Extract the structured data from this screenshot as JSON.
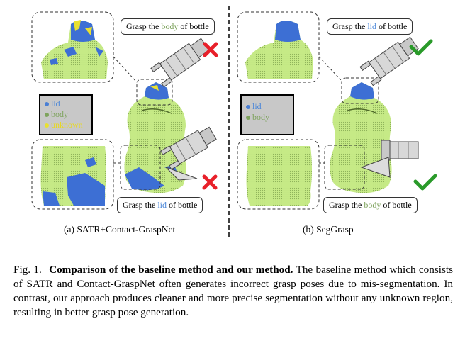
{
  "panel_a": {
    "subcaption": "(a) SATR+Contact-GraspNet",
    "bubble_top": {
      "prefix": "Grasp the ",
      "part": "body",
      "suffix": " of bottle"
    },
    "bubble_bottom": {
      "prefix": "Grasp the ",
      "part": "lid",
      "suffix": " of bottle"
    },
    "legend": [
      {
        "label": "lid",
        "color": "#4a7fd4"
      },
      {
        "label": "body",
        "color": "#7ea35d"
      },
      {
        "label": "unknown",
        "color": "#e8e030"
      }
    ]
  },
  "panel_b": {
    "subcaption": "(b) SegGrasp",
    "bubble_top": {
      "prefix": "Grasp the ",
      "part": "lid",
      "suffix": " of bottle"
    },
    "bubble_bottom": {
      "prefix": "Grasp the ",
      "part": "body",
      "suffix": " of bottle"
    },
    "legend": [
      {
        "label": "lid",
        "color": "#4a7fd4"
      },
      {
        "label": "body",
        "color": "#7ea35d"
      }
    ]
  },
  "colors": {
    "body": "#c8ec8a",
    "lid": "#3a6fd0",
    "unknown": "#f0e030",
    "wrong": "#e8202a",
    "right": "#2a9a2a"
  },
  "caption": {
    "fig": "Fig. 1.",
    "title": "Comparison of the baseline method and our method.",
    "text": "The baseline method which consists of SATR and Contact-GraspNet often generates incorrect grasp poses due to mis-segmentation. In contrast, our approach produces cleaner and more precise segmentation without any unknown region, resulting in better grasp pose generation."
  }
}
